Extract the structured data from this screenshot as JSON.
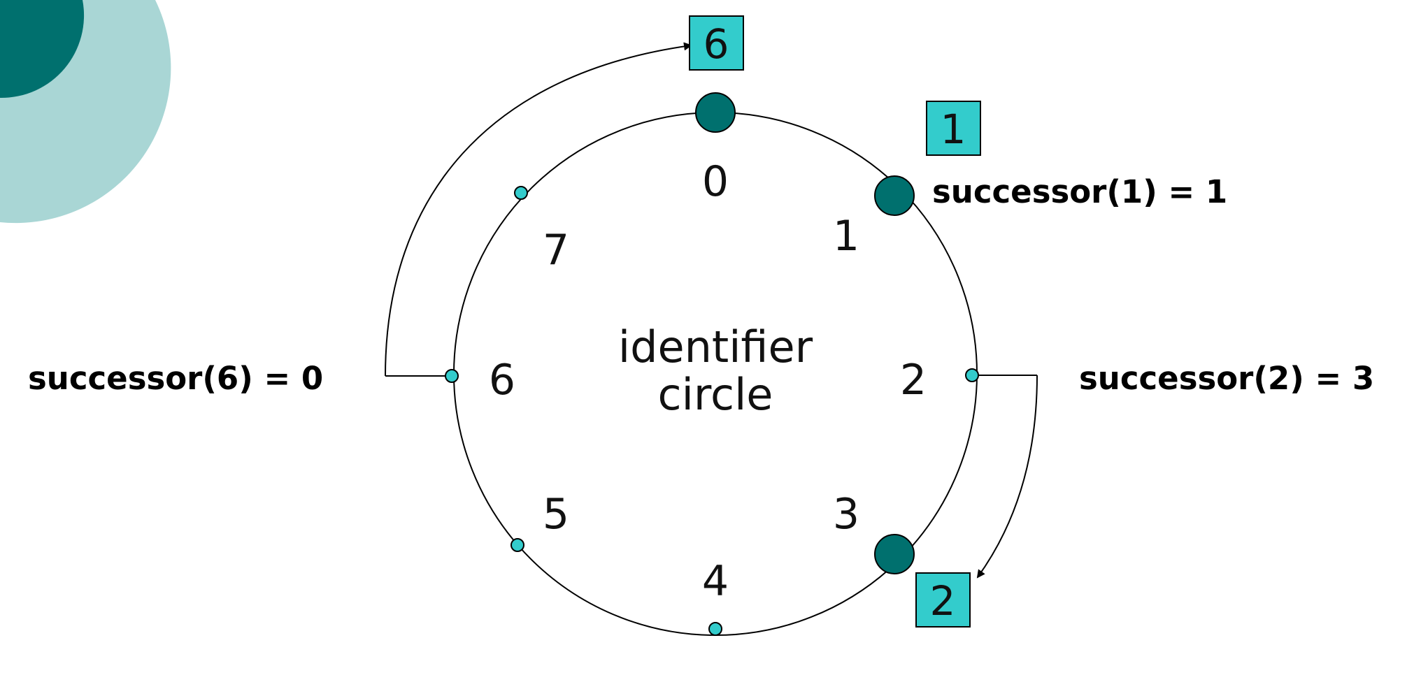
{
  "colors": {
    "dark_teal": "#00706E",
    "light_teal_bg": "#A9D6D5",
    "cyan": "#33CCCC",
    "line": "#000000"
  },
  "diagram": {
    "center_label": [
      "identifier",
      "circle"
    ],
    "identifiers": [
      "0",
      "1",
      "2",
      "3",
      "4",
      "5",
      "6",
      "7"
    ],
    "nodes": [
      "0",
      "1",
      "3"
    ],
    "keys": [
      {
        "label": "1",
        "node": "1"
      },
      {
        "label": "2",
        "node": "3"
      },
      {
        "label": "6",
        "node": "0"
      }
    ],
    "successor_labels": [
      "successor(1) = 1",
      "successor(2) = 3",
      "successor(6) = 0"
    ]
  }
}
